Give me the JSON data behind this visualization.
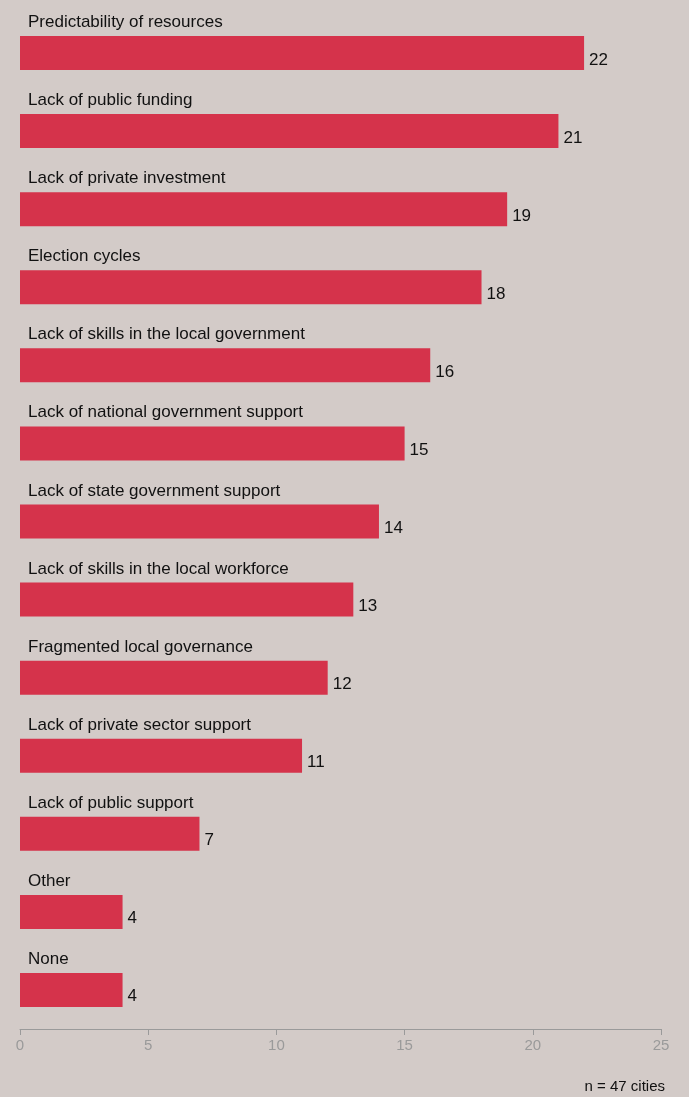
{
  "chart_data": {
    "type": "bar",
    "orientation": "horizontal",
    "categories": [
      "Predictability of resources",
      "Lack of public funding",
      "Lack of private investment",
      "Election cycles",
      "Lack of skills in the local government",
      "Lack of national government support",
      "Lack of state government support",
      "Lack of skills in the local workforce",
      "Fragmented local governance",
      "Lack of private sector support",
      "Lack of public support",
      "Other",
      "None"
    ],
    "values": [
      22,
      21,
      19,
      18,
      16,
      15,
      14,
      13,
      12,
      11,
      7,
      4,
      4
    ],
    "color": "#d5334b",
    "xlim": [
      0,
      25
    ],
    "xticks": [
      0,
      5,
      10,
      15,
      20,
      25
    ],
    "data_labels": true,
    "annotations": [
      "n = 47 cities"
    ]
  }
}
